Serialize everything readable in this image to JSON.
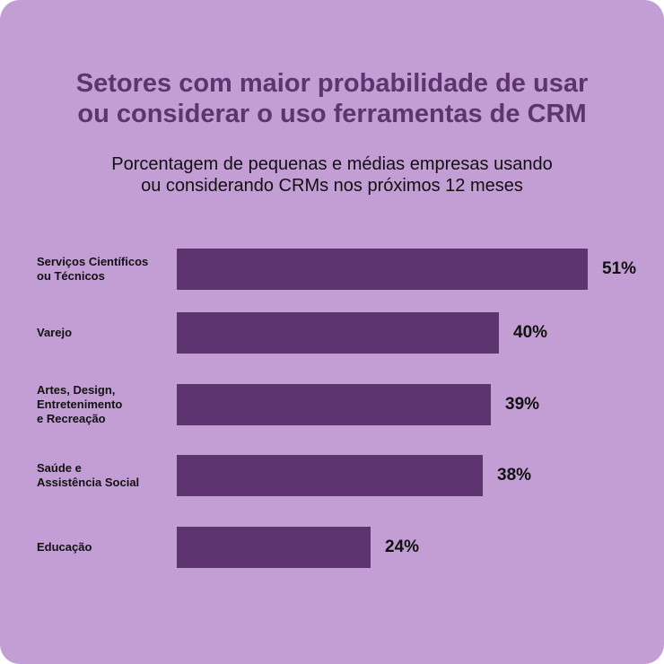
{
  "chart_data": {
    "type": "bar",
    "orientation": "horizontal",
    "title_lines": [
      "Setores com maior probabilidade de usar",
      "ou considerar o uso ferramentas de CRM"
    ],
    "subtitle_lines": [
      "Porcentagem de pequenas e médias empresas usando",
      "ou considerando CRMs nos próximos 12 meses"
    ],
    "categories": [
      [
        "Serviços Científicos",
        "ou Técnicos"
      ],
      [
        "Varejo"
      ],
      [
        "Artes, Design,",
        "Entretenimento",
        "e Recreação"
      ],
      [
        "Saúde e",
        "Assistência Social"
      ],
      [
        "Educação"
      ]
    ],
    "values": [
      51,
      40,
      39,
      38,
      24
    ],
    "value_labels": [
      "51%",
      "40%",
      "39%",
      "38%",
      "24%"
    ],
    "grid": false,
    "legend": "none",
    "colors": {
      "background": "#c29ed4",
      "bar": "#5d3470",
      "title": "#5d3470",
      "text": "#111111"
    }
  }
}
